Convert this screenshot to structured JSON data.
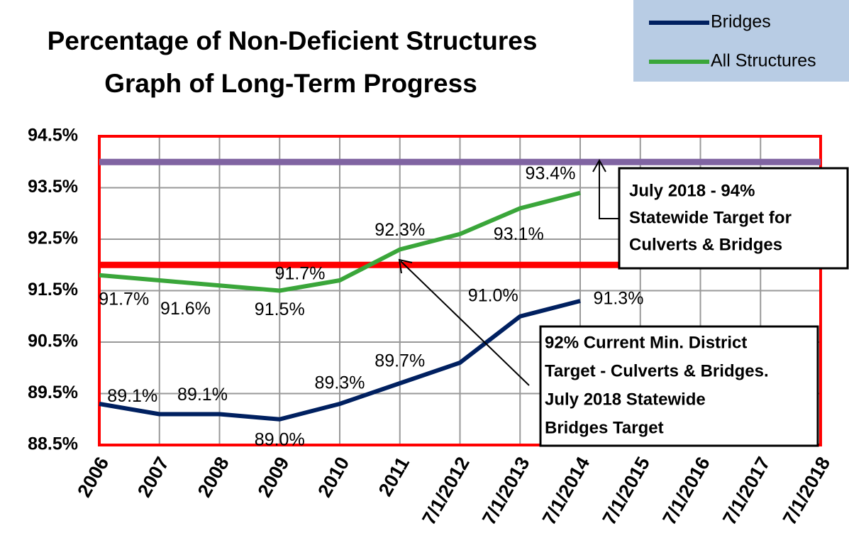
{
  "chart_data": {
    "type": "line",
    "title": [
      "Percentage of Non-Deficient Structures",
      "Graph of Long-Term Progress"
    ],
    "categories": [
      "2006",
      "2007",
      "2008",
      "2009",
      "2010",
      "2011",
      "7/1/2012",
      "7/1/2013",
      "7/1/2014",
      "7/1/2015",
      "7/1/2016",
      "7/1/2017",
      "7/1/2018"
    ],
    "series": [
      {
        "name": "Bridges",
        "color": "#002060",
        "values": [
          89.3,
          89.1,
          89.1,
          89.0,
          89.3,
          89.7,
          90.1,
          91.0,
          91.3,
          null,
          null,
          null,
          null
        ],
        "value_labels": [
          null,
          "89.1%",
          "89.1%",
          "89.0%",
          "89.3%",
          "89.7%",
          null,
          "91.0%",
          "91.3%",
          null,
          null,
          null,
          null
        ]
      },
      {
        "name": "All Structures",
        "color": "#3aa63a",
        "values": [
          91.8,
          91.7,
          91.6,
          91.5,
          91.7,
          92.3,
          92.6,
          93.1,
          93.4,
          null,
          null,
          null,
          null
        ],
        "value_labels": [
          null,
          "91.7%",
          "91.6%",
          "91.5%",
          "91.7%",
          "92.3%",
          null,
          "93.1%",
          "93.4%",
          null,
          null,
          null,
          null
        ]
      }
    ],
    "reference_lines": [
      {
        "value": 94,
        "color": "#8064a2"
      },
      {
        "value": 92,
        "color": "#ff0000"
      }
    ],
    "ylim": [
      88.5,
      94.5
    ],
    "yticks": [
      {
        "value": 88.5,
        "label": "88.5%"
      },
      {
        "value": 89.5,
        "label": "89.5%"
      },
      {
        "value": 90.5,
        "label": "90.5%"
      },
      {
        "value": 91.5,
        "label": "91.5%"
      },
      {
        "value": 92.5,
        "label": "92.5%"
      },
      {
        "value": 93.5,
        "label": "93.5%"
      },
      {
        "value": 94.5,
        "label": "94.5%"
      }
    ],
    "grid": true,
    "legend": "top-right",
    "annotations": [
      {
        "lines": [
          "July 2018 - 94%",
          "Statewide Target for",
          "Culverts & Bridges"
        ]
      },
      {
        "lines": [
          "92% Current Min. District",
          "Target - Culverts & Bridges.",
          "July  2018 Statewide",
          "Bridges Target"
        ]
      }
    ]
  }
}
